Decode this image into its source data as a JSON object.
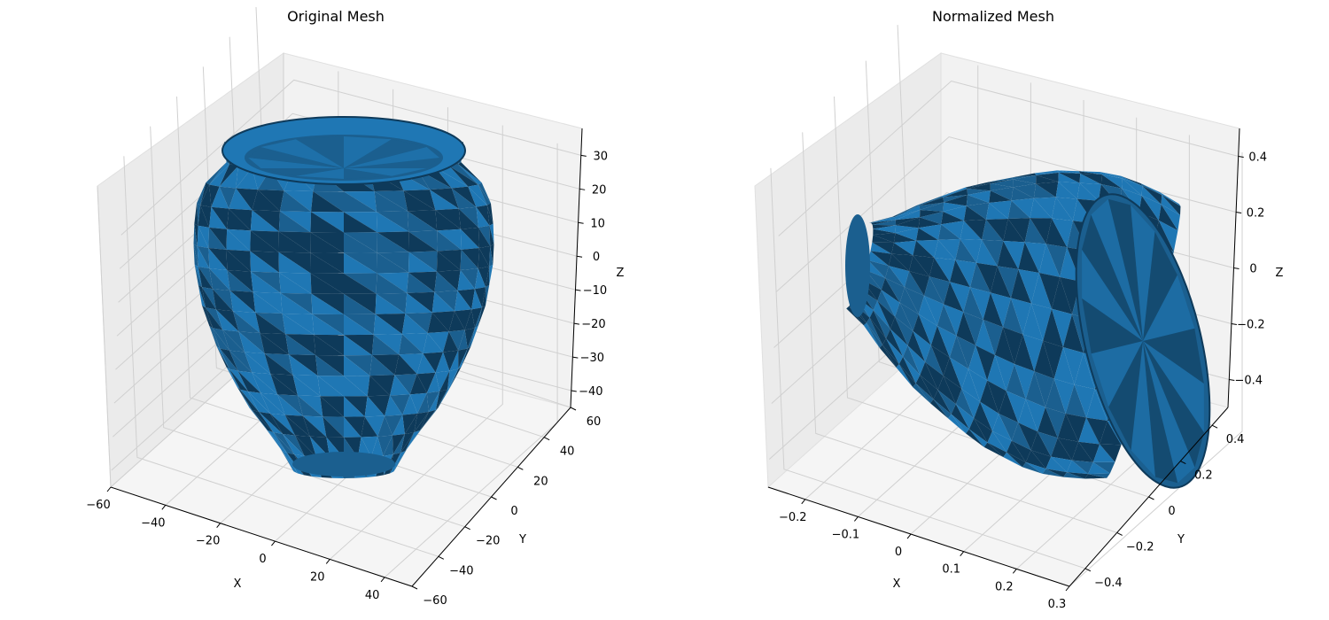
{
  "colors": {
    "mesh_light": "#1f77b4",
    "mesh_mid": "#1b5f8f",
    "mesh_dark": "#0e3a5a",
    "pane_left": "#ebebeb",
    "pane_right": "#f2f2f2",
    "pane_floor": "#f5f5f5",
    "grid": "#d0d0d0"
  },
  "chart_data": [
    {
      "type": "surface3d",
      "title": "Original Mesh",
      "xlabel": "X",
      "ylabel": "Y",
      "zlabel": "Z",
      "x_ticks": [
        -60,
        -40,
        -20,
        0,
        20,
        40
      ],
      "y_ticks": [
        -60,
        -40,
        -20,
        0,
        20,
        40,
        60
      ],
      "z_ticks": [
        -40,
        -30,
        -20,
        -10,
        0,
        10,
        20,
        30
      ],
      "xlim": [
        -60,
        50
      ],
      "ylim": [
        -60,
        60
      ],
      "zlim": [
        -45,
        38
      ],
      "mesh": "vase (upright, opening at top)",
      "grid": true
    },
    {
      "type": "surface3d",
      "title": "Normalized Mesh",
      "xlabel": "X",
      "ylabel": "Y",
      "zlabel": "Z",
      "x_ticks": [
        -0.2,
        -0.1,
        0.0,
        0.1,
        0.2,
        0.3
      ],
      "y_ticks": [
        -0.4,
        -0.2,
        0.0,
        0.2,
        0.4
      ],
      "z_ticks": [
        -0.4,
        -0.2,
        0.0,
        0.2,
        0.4
      ],
      "xlim": [
        -0.27,
        0.3
      ],
      "ylim": [
        -0.5,
        0.5
      ],
      "zlim": [
        -0.5,
        0.5
      ],
      "mesh": "vase (rotated, lying on its side)",
      "grid": true
    }
  ]
}
